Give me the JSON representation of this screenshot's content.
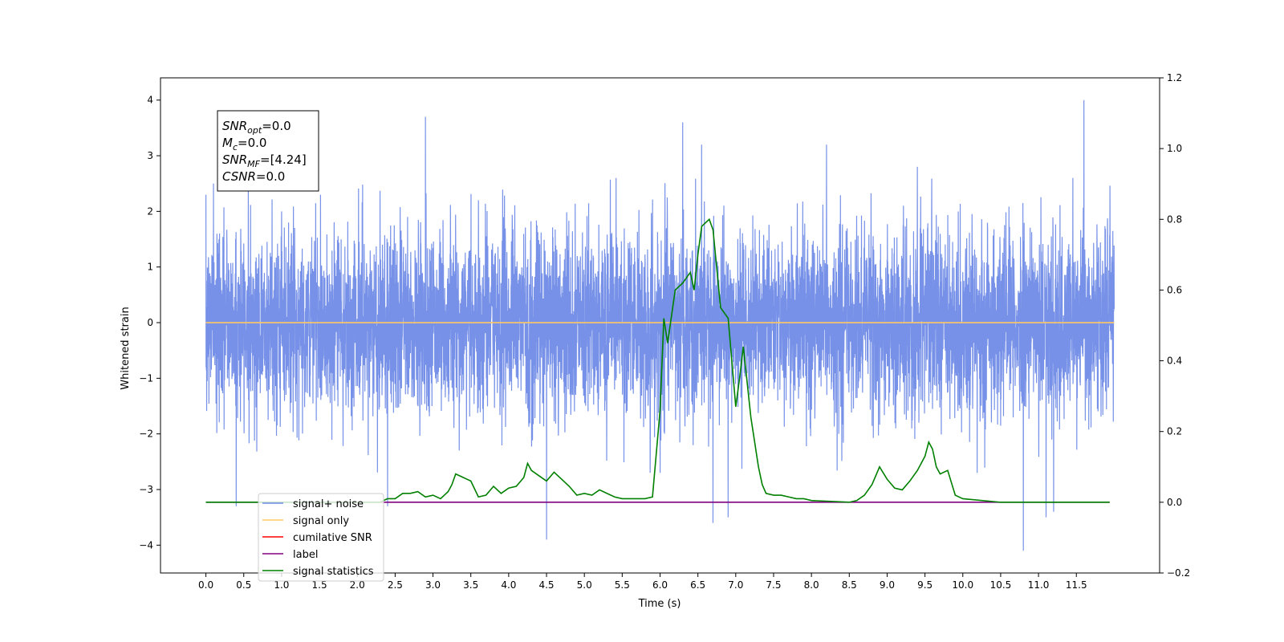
{
  "chart_data": {
    "type": "line",
    "title": "",
    "xlabel": "Time (s)",
    "ylabel": "Whitened strain",
    "xlim": [
      -0.6,
      12.6
    ],
    "ylim": [
      -4.5,
      4.4
    ],
    "y2lim": [
      -0.2,
      1.2
    ],
    "x_ticks": [
      0.0,
      0.5,
      1.0,
      1.5,
      2.0,
      2.5,
      3.0,
      3.5,
      4.0,
      4.5,
      5.0,
      5.5,
      6.0,
      6.5,
      7.0,
      7.5,
      8.0,
      8.5,
      9.0,
      9.5,
      10.0,
      10.5,
      11.0,
      11.5
    ],
    "x_tick_labels": [
      "0.0",
      "0.5",
      "1.0",
      "1.5",
      "2.0",
      "2.5",
      "3.0",
      "3.5",
      "4.0",
      "4.5",
      "5.0",
      "5.5",
      "6.0",
      "6.5",
      "7.0",
      "7.5",
      "8.0",
      "8.5",
      "9.0",
      "9.5",
      "10.0",
      "10.5",
      "11.0",
      "11.5"
    ],
    "y_ticks": [
      -4,
      -3,
      -2,
      -1,
      0,
      1,
      2,
      3,
      4
    ],
    "y_tick_labels": [
      "−4",
      "−3",
      "−2",
      "−1",
      "0",
      "1",
      "2",
      "3",
      "4"
    ],
    "y2_ticks": [
      -0.2,
      0.0,
      0.2,
      0.4,
      0.6,
      0.8,
      1.0,
      1.2
    ],
    "y2_tick_labels": [
      "−0.2",
      "0.0",
      "0.2",
      "0.4",
      "0.6",
      "0.8",
      "1.0",
      "1.2"
    ],
    "grid": false,
    "legend_position": "lower-left",
    "noise": {
      "t_start": 0.0,
      "t_end": 12.0,
      "std": 1.0,
      "peaks_max": [
        [
          0.0,
          2.3
        ],
        [
          0.1,
          2.5
        ],
        [
          0.4,
          2.1
        ],
        [
          1.0,
          2.0
        ],
        [
          2.9,
          3.7
        ],
        [
          3.6,
          2.2
        ],
        [
          6.3,
          3.6
        ],
        [
          6.55,
          3.2
        ],
        [
          8.2,
          3.2
        ],
        [
          9.4,
          2.8
        ],
        [
          11.6,
          4.0
        ]
      ],
      "peaks_min": [
        [
          0.4,
          -3.3
        ],
        [
          2.4,
          -3.3
        ],
        [
          4.5,
          -3.9
        ],
        [
          6.7,
          -3.6
        ],
        [
          6.9,
          -3.5
        ],
        [
          10.8,
          -4.1
        ],
        [
          11.1,
          -3.5
        ],
        [
          11.2,
          -3.4
        ]
      ]
    },
    "series": [
      {
        "name": "signal+ noise",
        "color": "#6f8be6",
        "axis": "left"
      },
      {
        "name": "signal only",
        "color": "#ffc864",
        "axis": "left",
        "x": [
          0.0,
          12.0
        ],
        "y": [
          0.0,
          0.0
        ]
      },
      {
        "name": "cumilative SNR",
        "color": "#ff0000",
        "axis": "right",
        "x": [],
        "y": []
      },
      {
        "name": "label",
        "color": "#800080",
        "axis": "right",
        "x": [
          0.0,
          11.94
        ],
        "y": [
          0.0,
          0.0
        ]
      },
      {
        "name": "signal statistics",
        "color": "#008000",
        "axis": "right",
        "x": [
          0.0,
          0.5,
          1.0,
          1.5,
          2.0,
          2.3,
          2.4,
          2.5,
          2.6,
          2.7,
          2.8,
          2.9,
          3.0,
          3.1,
          3.2,
          3.25,
          3.3,
          3.4,
          3.45,
          3.5,
          3.6,
          3.7,
          3.8,
          3.9,
          4.0,
          4.1,
          4.2,
          4.25,
          4.3,
          4.4,
          4.5,
          4.6,
          4.7,
          4.8,
          4.9,
          5.0,
          5.1,
          5.2,
          5.3,
          5.4,
          5.5,
          5.6,
          5.7,
          5.8,
          5.9,
          6.0,
          6.05,
          6.1,
          6.2,
          6.3,
          6.4,
          6.45,
          6.5,
          6.55,
          6.6,
          6.65,
          6.7,
          6.8,
          6.9,
          7.0,
          7.05,
          7.1,
          7.2,
          7.3,
          7.35,
          7.4,
          7.5,
          7.6,
          7.7,
          7.8,
          7.9,
          8.0,
          8.5,
          8.6,
          8.7,
          8.8,
          8.9,
          9.0,
          9.1,
          9.2,
          9.3,
          9.4,
          9.5,
          9.55,
          9.6,
          9.65,
          9.7,
          9.8,
          9.9,
          10.0,
          10.5,
          11.0,
          11.94
        ],
        "y": [
          0.0,
          0.0,
          0.0,
          0.0,
          0.0,
          0.0,
          0.01,
          0.01,
          0.025,
          0.025,
          0.03,
          0.015,
          0.02,
          0.01,
          0.03,
          0.05,
          0.08,
          0.07,
          0.065,
          0.06,
          0.015,
          0.02,
          0.045,
          0.025,
          0.04,
          0.045,
          0.07,
          0.11,
          0.09,
          0.075,
          0.06,
          0.085,
          0.065,
          0.045,
          0.02,
          0.025,
          0.02,
          0.035,
          0.025,
          0.015,
          0.01,
          0.01,
          0.01,
          0.01,
          0.015,
          0.26,
          0.52,
          0.45,
          0.6,
          0.62,
          0.65,
          0.6,
          0.7,
          0.78,
          0.79,
          0.8,
          0.77,
          0.55,
          0.52,
          0.27,
          0.35,
          0.44,
          0.24,
          0.1,
          0.05,
          0.025,
          0.02,
          0.02,
          0.015,
          0.01,
          0.01,
          0.005,
          0.0,
          0.005,
          0.02,
          0.05,
          0.1,
          0.065,
          0.04,
          0.035,
          0.06,
          0.09,
          0.13,
          0.17,
          0.15,
          0.1,
          0.08,
          0.09,
          0.02,
          0.01,
          0.0,
          0.0,
          0.0
        ]
      }
    ],
    "info_box": [
      {
        "var": "SNR",
        "sub": "opt",
        "value": "=0.0"
      },
      {
        "var": "M",
        "sub": "c",
        "value": "=0.0"
      },
      {
        "var": "SNR",
        "sub": "MF",
        "value": "=[4.24]"
      },
      {
        "var": "CSNR",
        "sub": "",
        "value": "=0.0"
      }
    ]
  }
}
